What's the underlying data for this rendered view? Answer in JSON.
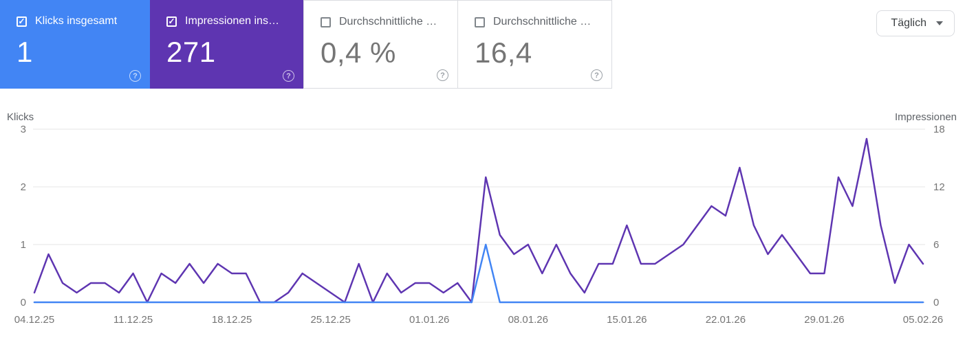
{
  "cards": [
    {
      "label": "Klicks insgesamt",
      "value": "1",
      "checked": true,
      "color": "#4285f4",
      "text_color": "#ffffff"
    },
    {
      "label": "Impressionen ins…",
      "value": "271",
      "checked": true,
      "color": "#5e35b1",
      "text_color": "#ffffff"
    },
    {
      "label": "Durchschnittliche …",
      "value": "0,4 %",
      "checked": false,
      "color": "#ffffff",
      "text_color": "#757575"
    },
    {
      "label": "Durchschnittliche …",
      "value": "16,4",
      "checked": false,
      "color": "#ffffff",
      "text_color": "#757575"
    }
  ],
  "toolbar": {
    "granularity_label": "Täglich"
  },
  "chart_data": {
    "type": "line",
    "x_tick_labels": [
      "04.12.25",
      "11.12.25",
      "18.12.25",
      "25.12.25",
      "01.01.26",
      "08.01.26",
      "15.01.26",
      "22.01.26",
      "29.01.26",
      "05.02.26"
    ],
    "x_tick_interval_days": 7,
    "grid": true,
    "left_axis": {
      "label": "Klicks",
      "ticks": [
        3,
        2,
        1,
        0
      ],
      "range": [
        0,
        3
      ]
    },
    "right_axis": {
      "label": "Impressionen",
      "ticks": [
        18,
        12,
        6,
        0
      ],
      "range": [
        0,
        18
      ]
    },
    "series": [
      {
        "name": "Klicks",
        "key": "clicks-line",
        "axis": "left",
        "color": "#4285f4",
        "values": [
          0,
          0,
          0,
          0,
          0,
          0,
          0,
          0,
          0,
          0,
          0,
          0,
          0,
          0,
          0,
          0,
          0,
          0,
          0,
          0,
          0,
          0,
          0,
          0,
          0,
          0,
          0,
          0,
          0,
          0,
          0,
          0,
          1,
          0,
          0,
          0,
          0,
          0,
          0,
          0,
          0,
          0,
          0,
          0,
          0,
          0,
          0,
          0,
          0,
          0,
          0,
          0,
          0,
          0,
          0,
          0,
          0,
          0,
          0,
          0,
          0,
          0,
          0,
          0
        ]
      },
      {
        "name": "Impressionen",
        "key": "impressions-line",
        "axis": "right",
        "color": "#5e35b1",
        "values": [
          1,
          5,
          2,
          1,
          2,
          2,
          1,
          3,
          0,
          3,
          2,
          4,
          2,
          4,
          3,
          3,
          0,
          0,
          1,
          3,
          2,
          1,
          0,
          4,
          0,
          3,
          1,
          2,
          2,
          1,
          2,
          0,
          13,
          7,
          5,
          6,
          3,
          6,
          3,
          1,
          4,
          4,
          8,
          4,
          4,
          5,
          6,
          8,
          10,
          9,
          14,
          8,
          5,
          7,
          5,
          3,
          3,
          13,
          10,
          17,
          8,
          2,
          6,
          4
        ]
      }
    ]
  }
}
